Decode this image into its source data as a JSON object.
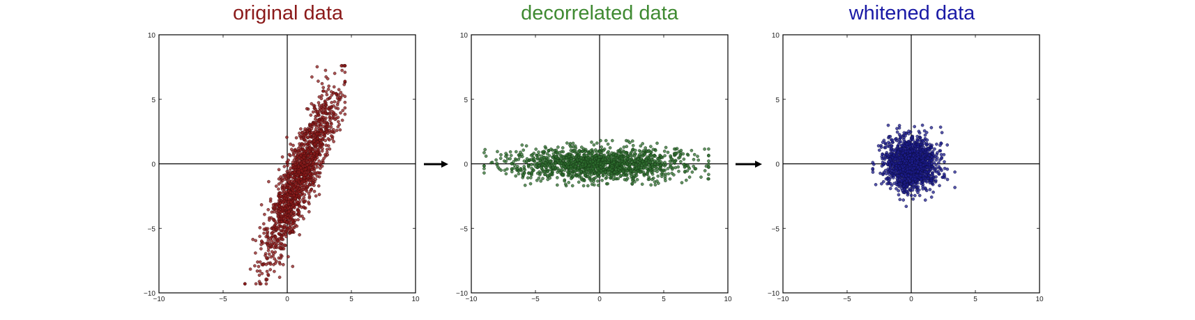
{
  "chart_data": [
    {
      "type": "scatter",
      "title": "original data",
      "title_color": "#8b1a1a",
      "point_color": "#8b1a1a",
      "point_edge_color": "#3a0a0a",
      "xlim": [
        -10,
        10
      ],
      "ylim": [
        -10,
        10
      ],
      "xticks": [
        -10,
        -5,
        0,
        5,
        10
      ],
      "yticks": [
        -10,
        -5,
        0,
        5,
        10
      ],
      "xtick_labels": [
        "−10",
        "−5",
        "0",
        "5",
        "10"
      ],
      "ytick_labels": [
        "−10",
        "−5",
        "0",
        "5",
        "10"
      ],
      "zero_lines": true,
      "grid": false,
      "cluster": {
        "shape": "correlated ellipse",
        "count": 1500,
        "center": [
          1.0,
          -1.0
        ],
        "principal_axis_angle_deg": 69,
        "principal_sd": 3.4,
        "minor_sd": 0.65,
        "x_range": [
          -3.3,
          4.5
        ],
        "y_range": [
          -9.3,
          7.6
        ]
      }
    },
    {
      "type": "scatter",
      "title": "decorrelated data",
      "title_color": "#3f8a32",
      "point_color": "#2f6e2f",
      "point_edge_color": "#0f2f0f",
      "xlim": [
        -10,
        10
      ],
      "ylim": [
        -10,
        10
      ],
      "xticks": [
        -10,
        -5,
        0,
        5,
        10
      ],
      "yticks": [
        -10,
        -5,
        0,
        5,
        10
      ],
      "xtick_labels": [
        "−10",
        "−5",
        "0",
        "5",
        "10"
      ],
      "ytick_labels": [
        "−10",
        "−5",
        "0",
        "5",
        "10"
      ],
      "zero_lines": true,
      "grid": false,
      "cluster": {
        "shape": "axis-aligned ellipse",
        "count": 1500,
        "center": [
          0.0,
          0.0
        ],
        "sd_x": 3.3,
        "sd_y": 0.62,
        "x_range": [
          -9.0,
          8.5
        ],
        "y_range": [
          -1.7,
          1.8
        ]
      }
    },
    {
      "type": "scatter",
      "title": "whitened data",
      "title_color": "#1a1aa6",
      "point_color": "#1c1c8c",
      "point_edge_color": "#0a0a3a",
      "xlim": [
        -10,
        10
      ],
      "ylim": [
        -10,
        10
      ],
      "xticks": [
        -10,
        -5,
        0,
        5,
        10
      ],
      "yticks": [
        -10,
        -5,
        0,
        5,
        10
      ],
      "xtick_labels": [
        "−10",
        "−5",
        "0",
        "5",
        "10"
      ],
      "ytick_labels": [
        "−10",
        "−5",
        "0",
        "5",
        "10"
      ],
      "zero_lines": true,
      "grid": false,
      "cluster": {
        "shape": "isotropic",
        "count": 1500,
        "center": [
          0.0,
          0.0
        ],
        "sd_x": 1.0,
        "sd_y": 1.0,
        "x_range": [
          -3.0,
          3.4
        ],
        "y_range": [
          -3.3,
          3.2
        ]
      }
    }
  ],
  "arrows": [
    {
      "from": "original data",
      "to": "decorrelated data",
      "direction": "right"
    },
    {
      "from": "decorrelated data",
      "to": "whitened data",
      "direction": "right"
    }
  ]
}
